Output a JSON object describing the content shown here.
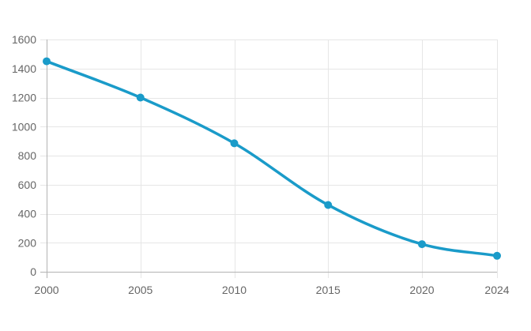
{
  "chart_data": {
    "type": "line",
    "title": "",
    "xlabel": "",
    "ylabel": "",
    "x": [
      2000,
      2005,
      2010,
      2015,
      2020,
      2024
    ],
    "series": [
      {
        "values": [
          1450,
          1200,
          885,
          460,
          190,
          110
        ],
        "color": "#1a9bc9"
      }
    ],
    "xticks": [
      2000,
      2005,
      2010,
      2015,
      2020,
      2024
    ],
    "yticks": [
      0,
      200,
      400,
      600,
      800,
      1000,
      1200,
      1400,
      1600
    ],
    "xlim": [
      2000,
      2024
    ],
    "ylim": [
      0,
      1600
    ],
    "grid": true,
    "legend": "none",
    "colors": {
      "grid": "#e6e6e6",
      "axis": "#b3b3b3",
      "tick_text": "#666666"
    }
  }
}
